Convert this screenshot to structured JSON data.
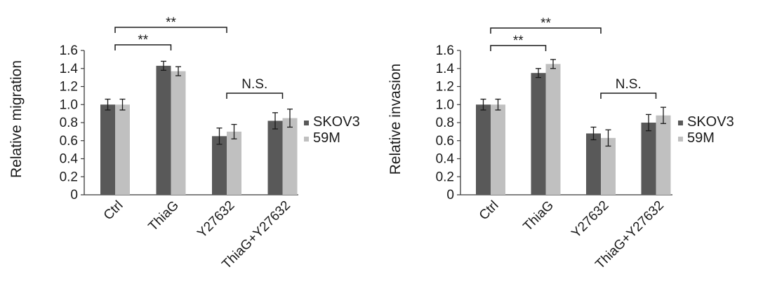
{
  "chart_data": [
    {
      "type": "bar",
      "categories": [
        "Ctrl",
        "ThiaG",
        "Y27632",
        "ThiaG+Y27632"
      ],
      "series": [
        {
          "name": "SKOV3",
          "values": [
            1.0,
            1.43,
            0.65,
            0.82
          ],
          "errors": [
            0.06,
            0.05,
            0.09,
            0.09
          ],
          "color": "#595959"
        },
        {
          "name": "59M",
          "values": [
            1.0,
            1.37,
            0.7,
            0.85
          ],
          "errors": [
            0.06,
            0.05,
            0.08,
            0.1
          ],
          "color": "#c0c0c0"
        }
      ],
      "ylabel": "Relative migration",
      "ylim": [
        0,
        1.6
      ],
      "yticks": [
        "0",
        "0.2",
        "0.4",
        "0.6",
        "0.8",
        "1.0",
        "1.2",
        "1.4",
        "1.6"
      ],
      "legend_position": "right",
      "grid": false,
      "annotations": [
        {
          "text": "**",
          "from": 0,
          "to": 1,
          "level": 1
        },
        {
          "text": "**",
          "from": 0,
          "to": 2,
          "level": 2
        },
        {
          "text": "N.S.",
          "from": 2,
          "to": 3,
          "level": 0
        }
      ]
    },
    {
      "type": "bar",
      "categories": [
        "Ctrl",
        "ThiaG",
        "Y27632",
        "ThiaG+Y27632"
      ],
      "series": [
        {
          "name": "SKOV3",
          "values": [
            1.0,
            1.35,
            0.68,
            0.8
          ],
          "errors": [
            0.06,
            0.05,
            0.07,
            0.09
          ],
          "color": "#595959"
        },
        {
          "name": "59M",
          "values": [
            1.0,
            1.45,
            0.63,
            0.88
          ],
          "errors": [
            0.06,
            0.05,
            0.09,
            0.09
          ],
          "color": "#c0c0c0"
        }
      ],
      "ylabel": "Relative invasion",
      "ylim": [
        0,
        1.6
      ],
      "yticks": [
        "0",
        "0.2",
        "0.4",
        "0.6",
        "0.8",
        "1.0",
        "1.2",
        "1.4",
        "1.6"
      ],
      "legend_position": "right",
      "grid": false,
      "annotations": [
        {
          "text": "**",
          "from": 0,
          "to": 1,
          "level": 1
        },
        {
          "text": "**",
          "from": 0,
          "to": 2,
          "level": 2
        },
        {
          "text": "N.S.",
          "from": 2,
          "to": 3,
          "level": 0
        }
      ]
    }
  ]
}
